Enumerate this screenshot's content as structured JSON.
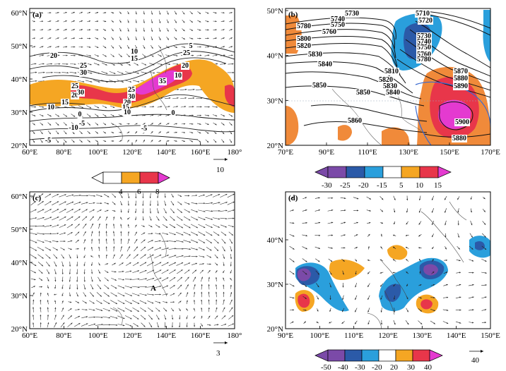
{
  "colors": {
    "orange": "#f5a623",
    "red": "#e8364a",
    "magenta": "#e43ad0",
    "deep_magenta": "#d01fbe",
    "purple": "#7b4aa8",
    "navy": "#2b5aa8",
    "blue": "#2a9fdc",
    "light_orange": "#f08a3a",
    "orange_red": "#f05a3a"
  },
  "panels": {
    "a": {
      "tag": "(a)",
      "lat_labels": [
        "60°N",
        "50°N",
        "40°N",
        "30°N",
        "20°N"
      ],
      "lon_labels": [
        "60°E",
        "80°E",
        "100°E",
        "120°E",
        "140°E",
        "160°E",
        "180°"
      ],
      "contour_labels": [
        "20",
        "25",
        "30",
        "10",
        "15",
        "20",
        "25",
        "30",
        "35",
        "30",
        "25",
        "20",
        "15",
        "10",
        "10",
        "0",
        "0",
        "-5",
        "-10",
        "-5",
        "-5",
        "15",
        "10",
        "20",
        "25",
        "5"
      ],
      "colorbar_ticks": [
        "4",
        "6",
        "8"
      ],
      "ref_vector": "10"
    },
    "b": {
      "tag": "(b)",
      "lat_labels": [
        "50°N",
        "40°N",
        "30°N",
        "20°N"
      ],
      "lon_labels": [
        "70°E",
        "90°E",
        "110°E",
        "130°E",
        "150°E",
        "170°E"
      ],
      "contour_labels": [
        "5730",
        "5740",
        "5750",
        "5760",
        "5780",
        "5800",
        "5820",
        "5830",
        "5840",
        "5850",
        "5850",
        "5860",
        "5810",
        "5820",
        "5830",
        "5840",
        "5710",
        "5720",
        "5730",
        "5740",
        "5750",
        "5760",
        "5780",
        "5870",
        "5880",
        "5890",
        "5900",
        "5880"
      ],
      "colorbar_ticks": [
        "-30",
        "-25",
        "-20",
        "-15",
        "5",
        "10",
        "15"
      ]
    },
    "c": {
      "tag": "(c)",
      "lat_labels": [
        "60°N",
        "50°N",
        "40°N",
        "30°N",
        "20°N"
      ],
      "lon_labels": [
        "60°E",
        "80°E",
        "100°E",
        "120°E",
        "140°E",
        "160°E",
        "180°"
      ],
      "point_label": "A",
      "ref_vector": "3"
    },
    "d": {
      "tag": "(d)",
      "lat_labels": [
        "40°N",
        "30°N",
        "20°N"
      ],
      "lon_labels": [
        "90°E",
        "100°E",
        "110°E",
        "120°E",
        "130°E",
        "140°E",
        "150°E"
      ],
      "colorbar_ticks": [
        "-50",
        "-40",
        "-30",
        "-20",
        "20",
        "30",
        "40"
      ],
      "ref_vector": "40"
    }
  }
}
